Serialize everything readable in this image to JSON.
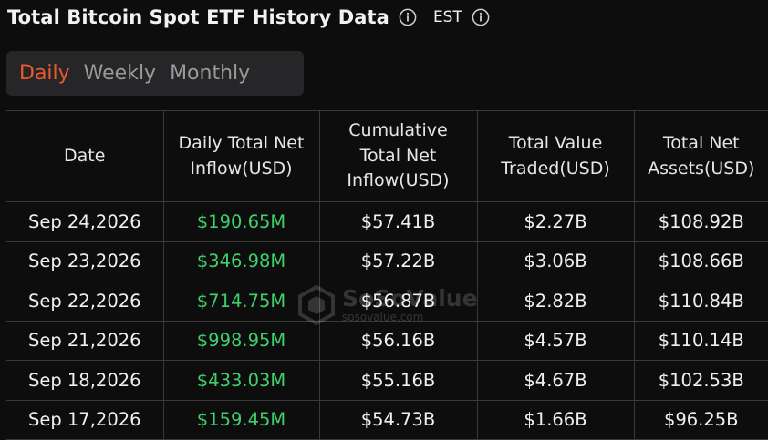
{
  "header": {
    "title": "Total Bitcoin Spot ETF History Data",
    "timezone": "EST",
    "info_icon": "info-circle-icon"
  },
  "tabs": [
    {
      "label": "Daily",
      "active": true
    },
    {
      "label": "Weekly",
      "active": false
    },
    {
      "label": "Monthly",
      "active": false
    }
  ],
  "colors": {
    "accent_active_tab": "#ea5b2b",
    "positive_inflow": "#3fcf6b",
    "background": "#0d0d0e"
  },
  "table": {
    "columns": [
      "Date",
      "Daily Total Net\nInflow(USD)",
      "Cumulative\nTotal Net\nInflow(USD)",
      "Total Value\nTraded(USD)",
      "Total Net\nAssets(USD)"
    ],
    "rows": [
      [
        "Sep 24,2026",
        "$190.65M",
        "$57.41B",
        "$2.27B",
        "$108.92B"
      ],
      [
        "Sep 23,2026",
        "$346.98M",
        "$57.22B",
        "$3.06B",
        "$108.66B"
      ],
      [
        "Sep 22,2026",
        "$714.75M",
        "$56.87B",
        "$2.82B",
        "$110.84B"
      ],
      [
        "Sep 21,2026",
        "$998.95M",
        "$56.16B",
        "$4.57B",
        "$110.14B"
      ],
      [
        "Sep 18,2026",
        "$433.03M",
        "$55.16B",
        "$4.67B",
        "$102.53B"
      ],
      [
        "Sep 17,2026",
        "$159.45M",
        "$54.73B",
        "$1.66B",
        "$96.25B"
      ]
    ]
  },
  "watermark": {
    "name": "SoSoValue",
    "domain": "sosovalue.com"
  }
}
